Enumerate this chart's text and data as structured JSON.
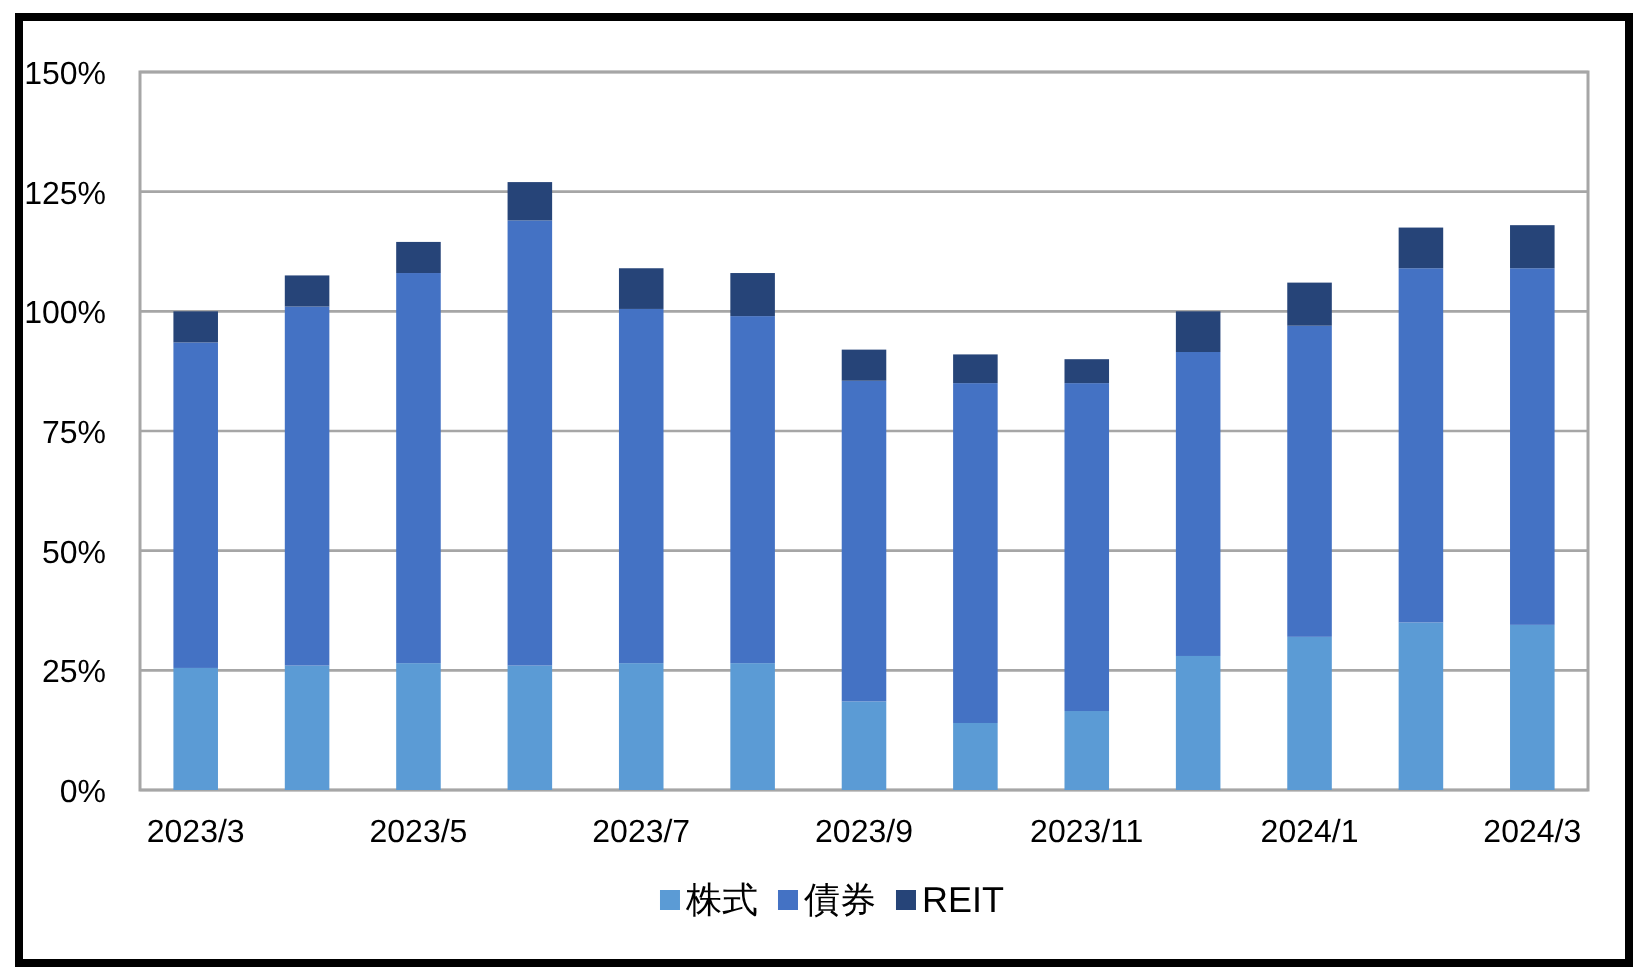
{
  "chart_data": {
    "type": "bar",
    "stacked": true,
    "categories": [
      "2023/3",
      null,
      "2023/5",
      null,
      "2023/7",
      null,
      "2023/9",
      null,
      "2023/11",
      null,
      "2024/1",
      null,
      "2024/3"
    ],
    "series": [
      {
        "name": "株式",
        "color": "#5b9bd5",
        "values": [
          25.5,
          26,
          26.5,
          26,
          26.5,
          26.5,
          18.5,
          14,
          16.5,
          28,
          32,
          35,
          34.5
        ]
      },
      {
        "name": "債券",
        "color": "#4472c4",
        "values": [
          68,
          75,
          81.5,
          93,
          74,
          72.5,
          67,
          71,
          68.5,
          63.5,
          65,
          74,
          74.5
        ]
      },
      {
        "name": "REIT",
        "color": "#264478",
        "values": [
          6.5,
          6.5,
          6.5,
          8,
          8.5,
          9,
          6.5,
          6,
          5,
          8.5,
          9,
          8.5,
          9
        ]
      }
    ],
    "ylim": [
      0,
      150
    ],
    "yticks": [
      {
        "value": 0,
        "label": "0%"
      },
      {
        "value": 25,
        "label": "25%"
      },
      {
        "value": 50,
        "label": "50%"
      },
      {
        "value": 75,
        "label": "75%"
      },
      {
        "value": 100,
        "label": "100%"
      },
      {
        "value": 125,
        "label": "125%"
      },
      {
        "value": 150,
        "label": "150%"
      }
    ],
    "grid": "y",
    "legend": "bottom"
  }
}
